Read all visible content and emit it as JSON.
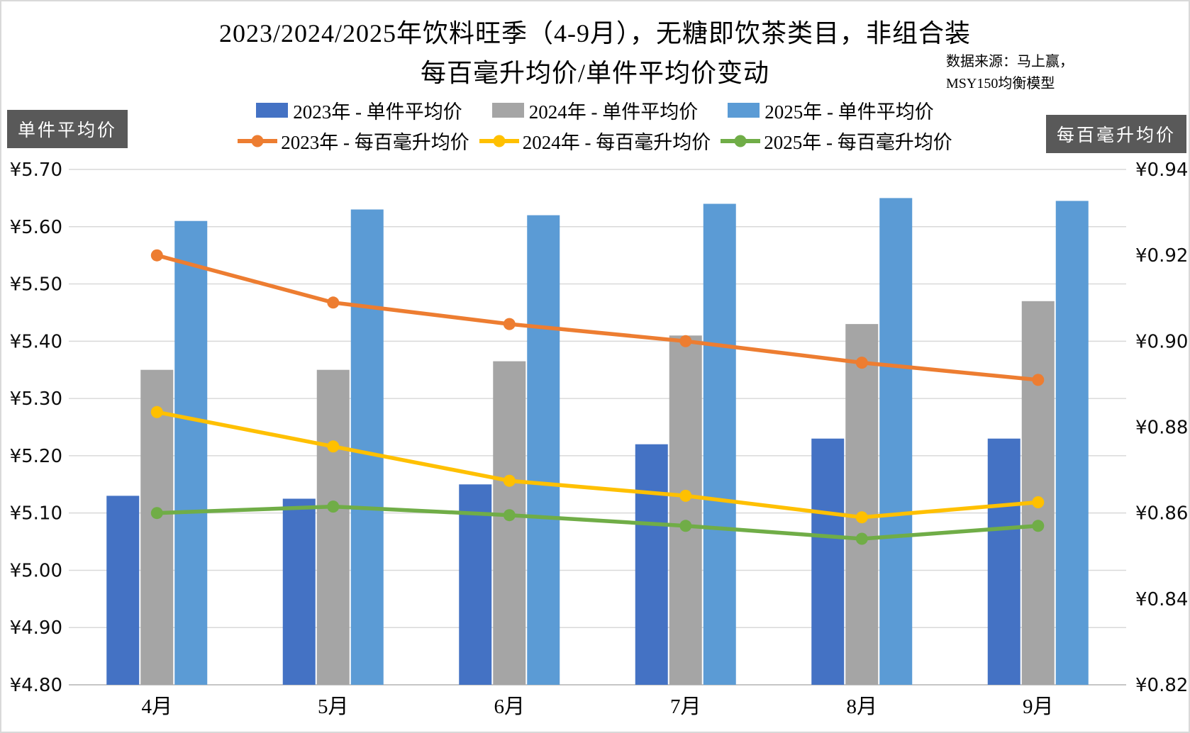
{
  "title": {
    "line1": "2023/2024/2025年饮料旺季（4-9月），无糖即饮茶类目，非组合装",
    "line2": "每百毫升均价/单件平均价变动"
  },
  "source_note": {
    "line1": "数据来源：马上赢，",
    "line2": "MSY150均衡模型"
  },
  "axis_boxes": {
    "left": "单件平均价",
    "right": "每百毫升均价"
  },
  "colors": {
    "bar_2023": "#4472C4",
    "bar_2024": "#A5A5A5",
    "bar_2025": "#5B9BD5",
    "line_2023": "#ED7D31",
    "line_2024": "#FFC000",
    "line_2025": "#70AD47",
    "gridline": "#D9D9D9",
    "axis_box_bg": "#595959"
  },
  "legend": {
    "rows": [
      {
        "type": "bar",
        "items": [
          {
            "label": "2023年 - 单件平均价",
            "color": "#4472C4"
          },
          {
            "label": "2024年 - 单件平均价",
            "color": "#A5A5A5"
          },
          {
            "label": "2025年 - 单件平均价",
            "color": "#5B9BD5"
          }
        ]
      },
      {
        "type": "line",
        "items": [
          {
            "label": "2023年 - 每百毫升均价",
            "color": "#ED7D31"
          },
          {
            "label": "2024年 - 每百毫升均价",
            "color": "#FFC000"
          },
          {
            "label": "2025年 - 每百毫升均价",
            "color": "#70AD47"
          }
        ]
      }
    ]
  },
  "chart_data": {
    "type": "combo-bar-line",
    "categories": [
      "4月",
      "5月",
      "6月",
      "7月",
      "8月",
      "9月"
    ],
    "bar_series": [
      {
        "name": "2023年 - 单件平均价",
        "axis": "left",
        "color": "#4472C4",
        "values": [
          5.13,
          5.125,
          5.15,
          5.22,
          5.23,
          5.23
        ]
      },
      {
        "name": "2024年 - 单件平均价",
        "axis": "left",
        "color": "#A5A5A5",
        "values": [
          5.35,
          5.35,
          5.365,
          5.41,
          5.43,
          5.47
        ]
      },
      {
        "name": "2025年 - 单件平均价",
        "axis": "left",
        "color": "#5B9BD5",
        "values": [
          5.61,
          5.63,
          5.62,
          5.64,
          5.65,
          5.645
        ]
      }
    ],
    "line_series": [
      {
        "name": "2023年 - 每百毫升均价",
        "axis": "right",
        "color": "#ED7D31",
        "values": [
          0.92,
          0.909,
          0.904,
          0.9,
          0.895,
          0.891
        ]
      },
      {
        "name": "2024年 - 每百毫升均价",
        "axis": "right",
        "color": "#FFC000",
        "values": [
          0.8835,
          0.8755,
          0.8675,
          0.864,
          0.859,
          0.8625
        ]
      },
      {
        "name": "2025年 - 每百毫升均价",
        "axis": "right",
        "color": "#70AD47",
        "values": [
          0.86,
          0.8615,
          0.8595,
          0.857,
          0.854,
          0.857
        ]
      }
    ],
    "left_axis": {
      "title": "单件平均价",
      "min": 4.8,
      "max": 5.7,
      "step": 0.1,
      "prefix": "¥",
      "decimals": 2
    },
    "right_axis": {
      "title": "每百毫升均价",
      "min": 0.82,
      "max": 0.94,
      "step": 0.02,
      "prefix": "¥",
      "decimals": 2
    },
    "grid": "horizontal",
    "legend_position": "top"
  }
}
